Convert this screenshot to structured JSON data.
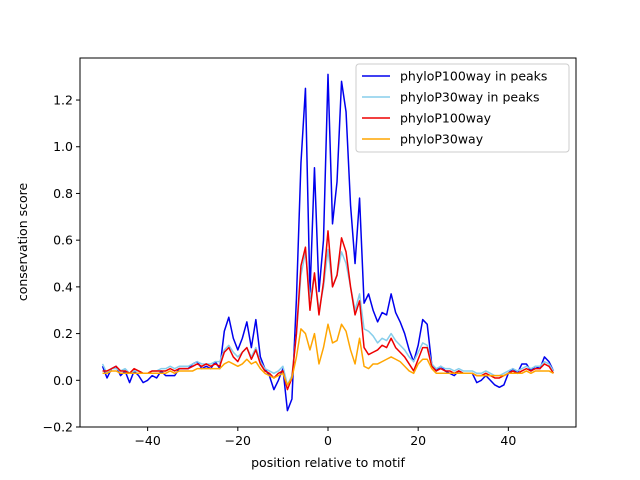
{
  "chart_data": {
    "type": "line",
    "xlabel": "position relative to motif",
    "ylabel": "conservation score",
    "xlim": [
      -55,
      55
    ],
    "ylim": [
      -0.2,
      1.38
    ],
    "xticks": [
      -40,
      -20,
      0,
      20,
      40
    ],
    "yticks": [
      -0.2,
      0.0,
      0.2,
      0.4,
      0.6,
      0.8,
      1.0,
      1.2
    ],
    "xtick_labels": [
      "−40",
      "−20",
      "0",
      "20",
      "40"
    ],
    "ytick_labels": [
      "−0.2",
      "0.0",
      "0.2",
      "0.4",
      "0.6",
      "0.8",
      "1.0",
      "1.2"
    ],
    "grid": false,
    "legend_position": "top-right",
    "x": [
      -50,
      -49,
      -48,
      -47,
      -46,
      -45,
      -44,
      -43,
      -42,
      -41,
      -40,
      -39,
      -38,
      -37,
      -36,
      -35,
      -34,
      -33,
      -32,
      -31,
      -30,
      -29,
      -28,
      -27,
      -26,
      -25,
      -24,
      -23,
      -22,
      -21,
      -20,
      -19,
      -18,
      -17,
      -16,
      -15,
      -14,
      -13,
      -12,
      -11,
      -10,
      -9,
      -8,
      -7,
      -6,
      -5,
      -4,
      -3,
      -2,
      -1,
      0,
      1,
      2,
      3,
      4,
      5,
      6,
      7,
      8,
      9,
      10,
      11,
      12,
      13,
      14,
      15,
      16,
      17,
      18,
      19,
      20,
      21,
      22,
      23,
      24,
      25,
      26,
      27,
      28,
      29,
      30,
      31,
      32,
      33,
      34,
      35,
      36,
      37,
      38,
      39,
      40,
      41,
      42,
      43,
      44,
      45,
      46,
      47,
      48,
      49,
      50
    ],
    "series": [
      {
        "name": "phyloP100way in peaks",
        "color": "#0000ee",
        "values": [
          0.06,
          0.01,
          0.05,
          0.06,
          0.02,
          0.04,
          -0.01,
          0.04,
          0.02,
          -0.01,
          0.0,
          0.02,
          0.01,
          0.04,
          0.02,
          0.02,
          0.02,
          0.05,
          0.05,
          0.05,
          0.07,
          0.08,
          0.05,
          0.06,
          0.05,
          0.08,
          0.05,
          0.21,
          0.27,
          0.18,
          0.13,
          0.18,
          0.25,
          0.14,
          0.26,
          0.1,
          0.05,
          0.02,
          -0.04,
          0.0,
          0.05,
          -0.13,
          -0.08,
          0.35,
          0.93,
          1.25,
          0.37,
          0.91,
          0.38,
          0.6,
          1.31,
          0.67,
          0.85,
          1.28,
          1.15,
          0.75,
          0.5,
          0.78,
          0.33,
          0.37,
          0.3,
          0.25,
          0.29,
          0.28,
          0.37,
          0.29,
          0.25,
          0.2,
          0.13,
          0.08,
          0.15,
          0.26,
          0.24,
          0.07,
          0.04,
          0.06,
          0.04,
          0.03,
          0.02,
          0.04,
          0.03,
          0.03,
          0.03,
          -0.01,
          0.0,
          0.02,
          0.0,
          -0.02,
          -0.03,
          -0.02,
          0.03,
          0.05,
          0.03,
          0.07,
          0.07,
          0.04,
          0.06,
          0.05,
          0.1,
          0.08,
          0.04
        ]
      },
      {
        "name": "phyloP30way in peaks",
        "color": "#87ceeb",
        "values": [
          0.07,
          0.03,
          0.05,
          0.05,
          0.04,
          0.05,
          0.03,
          0.04,
          0.04,
          0.03,
          0.03,
          0.04,
          0.04,
          0.05,
          0.05,
          0.06,
          0.05,
          0.06,
          0.06,
          0.06,
          0.07,
          0.08,
          0.07,
          0.07,
          0.07,
          0.08,
          0.08,
          0.13,
          0.15,
          0.12,
          0.1,
          0.12,
          0.14,
          0.1,
          0.14,
          0.08,
          0.05,
          0.04,
          0.03,
          0.04,
          0.06,
          -0.02,
          0.02,
          0.2,
          0.45,
          0.55,
          0.35,
          0.45,
          0.3,
          0.4,
          0.56,
          0.4,
          0.45,
          0.55,
          0.5,
          0.4,
          0.3,
          0.37,
          0.22,
          0.21,
          0.19,
          0.16,
          0.18,
          0.17,
          0.2,
          0.17,
          0.15,
          0.13,
          0.1,
          0.08,
          0.12,
          0.16,
          0.15,
          0.07,
          0.05,
          0.06,
          0.05,
          0.05,
          0.04,
          0.05,
          0.04,
          0.04,
          0.04,
          0.03,
          0.03,
          0.04,
          0.03,
          0.02,
          0.02,
          0.03,
          0.04,
          0.05,
          0.04,
          0.05,
          0.06,
          0.05,
          0.06,
          0.06,
          0.08,
          0.07,
          0.04
        ]
      },
      {
        "name": "phyloP100way",
        "color": "#ee0000",
        "values": [
          0.04,
          0.04,
          0.05,
          0.06,
          0.04,
          0.04,
          0.03,
          0.05,
          0.04,
          0.03,
          0.03,
          0.04,
          0.04,
          0.04,
          0.04,
          0.05,
          0.04,
          0.05,
          0.05,
          0.05,
          0.06,
          0.07,
          0.06,
          0.07,
          0.06,
          0.07,
          0.06,
          0.12,
          0.14,
          0.1,
          0.08,
          0.12,
          0.14,
          0.09,
          0.13,
          0.07,
          0.04,
          0.03,
          0.01,
          0.03,
          0.04,
          -0.04,
          0.01,
          0.2,
          0.49,
          0.57,
          0.3,
          0.46,
          0.28,
          0.42,
          0.64,
          0.4,
          0.45,
          0.61,
          0.55,
          0.4,
          0.28,
          0.34,
          0.14,
          0.11,
          0.12,
          0.13,
          0.15,
          0.14,
          0.18,
          0.14,
          0.12,
          0.1,
          0.07,
          0.04,
          0.09,
          0.14,
          0.14,
          0.06,
          0.04,
          0.05,
          0.04,
          0.04,
          0.03,
          0.04,
          0.03,
          0.03,
          0.03,
          0.02,
          0.02,
          0.03,
          0.02,
          0.01,
          0.01,
          0.02,
          0.03,
          0.04,
          0.03,
          0.04,
          0.05,
          0.04,
          0.05,
          0.05,
          0.07,
          0.06,
          0.03
        ]
      },
      {
        "name": "phyloP30way",
        "color": "#ffa500",
        "values": [
          0.03,
          0.03,
          0.04,
          0.04,
          0.03,
          0.03,
          0.03,
          0.03,
          0.03,
          0.03,
          0.03,
          0.03,
          0.03,
          0.03,
          0.03,
          0.04,
          0.03,
          0.04,
          0.04,
          0.04,
          0.04,
          0.05,
          0.05,
          0.05,
          0.05,
          0.05,
          0.05,
          0.07,
          0.08,
          0.07,
          0.06,
          0.07,
          0.09,
          0.07,
          0.08,
          0.05,
          0.03,
          0.02,
          0.01,
          0.02,
          0.03,
          -0.02,
          0.01,
          0.1,
          0.22,
          0.2,
          0.13,
          0.2,
          0.07,
          0.14,
          0.24,
          0.16,
          0.17,
          0.24,
          0.21,
          0.13,
          0.07,
          0.18,
          0.06,
          0.05,
          0.07,
          0.07,
          0.08,
          0.09,
          0.1,
          0.09,
          0.08,
          0.06,
          0.04,
          0.03,
          0.07,
          0.09,
          0.09,
          0.05,
          0.03,
          0.03,
          0.03,
          0.03,
          0.03,
          0.03,
          0.03,
          0.03,
          0.03,
          0.02,
          0.02,
          0.02,
          0.02,
          0.02,
          0.02,
          0.02,
          0.03,
          0.03,
          0.03,
          0.03,
          0.04,
          0.03,
          0.04,
          0.04,
          0.04,
          0.04,
          0.03
        ]
      }
    ]
  }
}
